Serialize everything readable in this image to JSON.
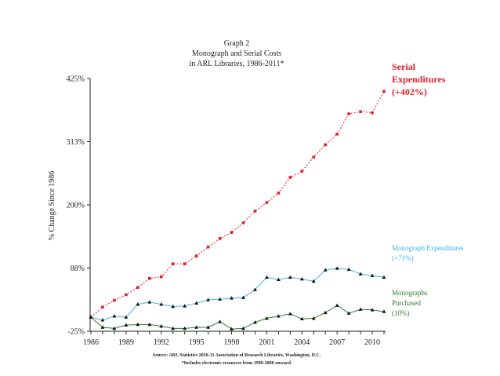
{
  "chart_data": {
    "type": "line",
    "title_lines": [
      "Graph 2",
      "Monograph and Serial Costs",
      "in ARL Libraries, 1986-2011*"
    ],
    "ylabel": "% Change Since 1986",
    "xlabel": "",
    "x": [
      1986,
      1987,
      1988,
      1989,
      1990,
      1991,
      1992,
      1993,
      1994,
      1995,
      1996,
      1997,
      1998,
      1999,
      2000,
      2001,
      2002,
      2003,
      2004,
      2005,
      2006,
      2007,
      2008,
      2009,
      2010,
      2011
    ],
    "x_ticks": [
      1986,
      1989,
      1992,
      1995,
      1998,
      2001,
      2004,
      2007,
      2010
    ],
    "y_ticks": [
      "425%",
      "313%",
      "200%",
      "88%",
      "-25%"
    ],
    "ylim": [
      -25,
      425
    ],
    "series": [
      {
        "name": "Serial Expenditures",
        "legend_lines": [
          "Serial",
          "Expenditures",
          "(+402%)"
        ],
        "color": "#e0202a",
        "marker": "square",
        "values": [
          0,
          18,
          30,
          40,
          53,
          69,
          72,
          95,
          95,
          109,
          125,
          140,
          151,
          168,
          189,
          204,
          221,
          249,
          260,
          285,
          307,
          326,
          362,
          366,
          364,
          402
        ]
      },
      {
        "name": "Monograph Expenditures",
        "legend_lines": [
          "Monograph Expenditures",
          "(+71%)"
        ],
        "color": "#3bb4e0",
        "marker": "triangle",
        "values": [
          0,
          -5,
          2,
          0,
          23,
          27,
          23,
          19,
          20,
          25,
          31,
          32,
          34,
          35,
          49,
          71,
          67,
          71,
          68,
          64,
          84,
          87,
          85,
          77,
          74,
          71
        ]
      },
      {
        "name": "Monographs Purchased",
        "legend_lines": [
          "Monographs",
          "Purchased",
          "(10%)"
        ],
        "color": "#2e7d32",
        "marker": "triangle",
        "values": [
          0,
          -18,
          -20,
          -14,
          -13,
          -13,
          -16,
          -20,
          -20,
          -18,
          -18,
          -8,
          -21,
          -20,
          -9,
          -2,
          2,
          6,
          -3,
          -2,
          8,
          21,
          7,
          14,
          13,
          10
        ]
      }
    ],
    "source_lines": [
      "Source:  ARL Statistics 2010-11  Association of Research Libraries, Washington, D.C.",
      "*Includes electronic resources from 1999-2000 onward."
    ]
  }
}
